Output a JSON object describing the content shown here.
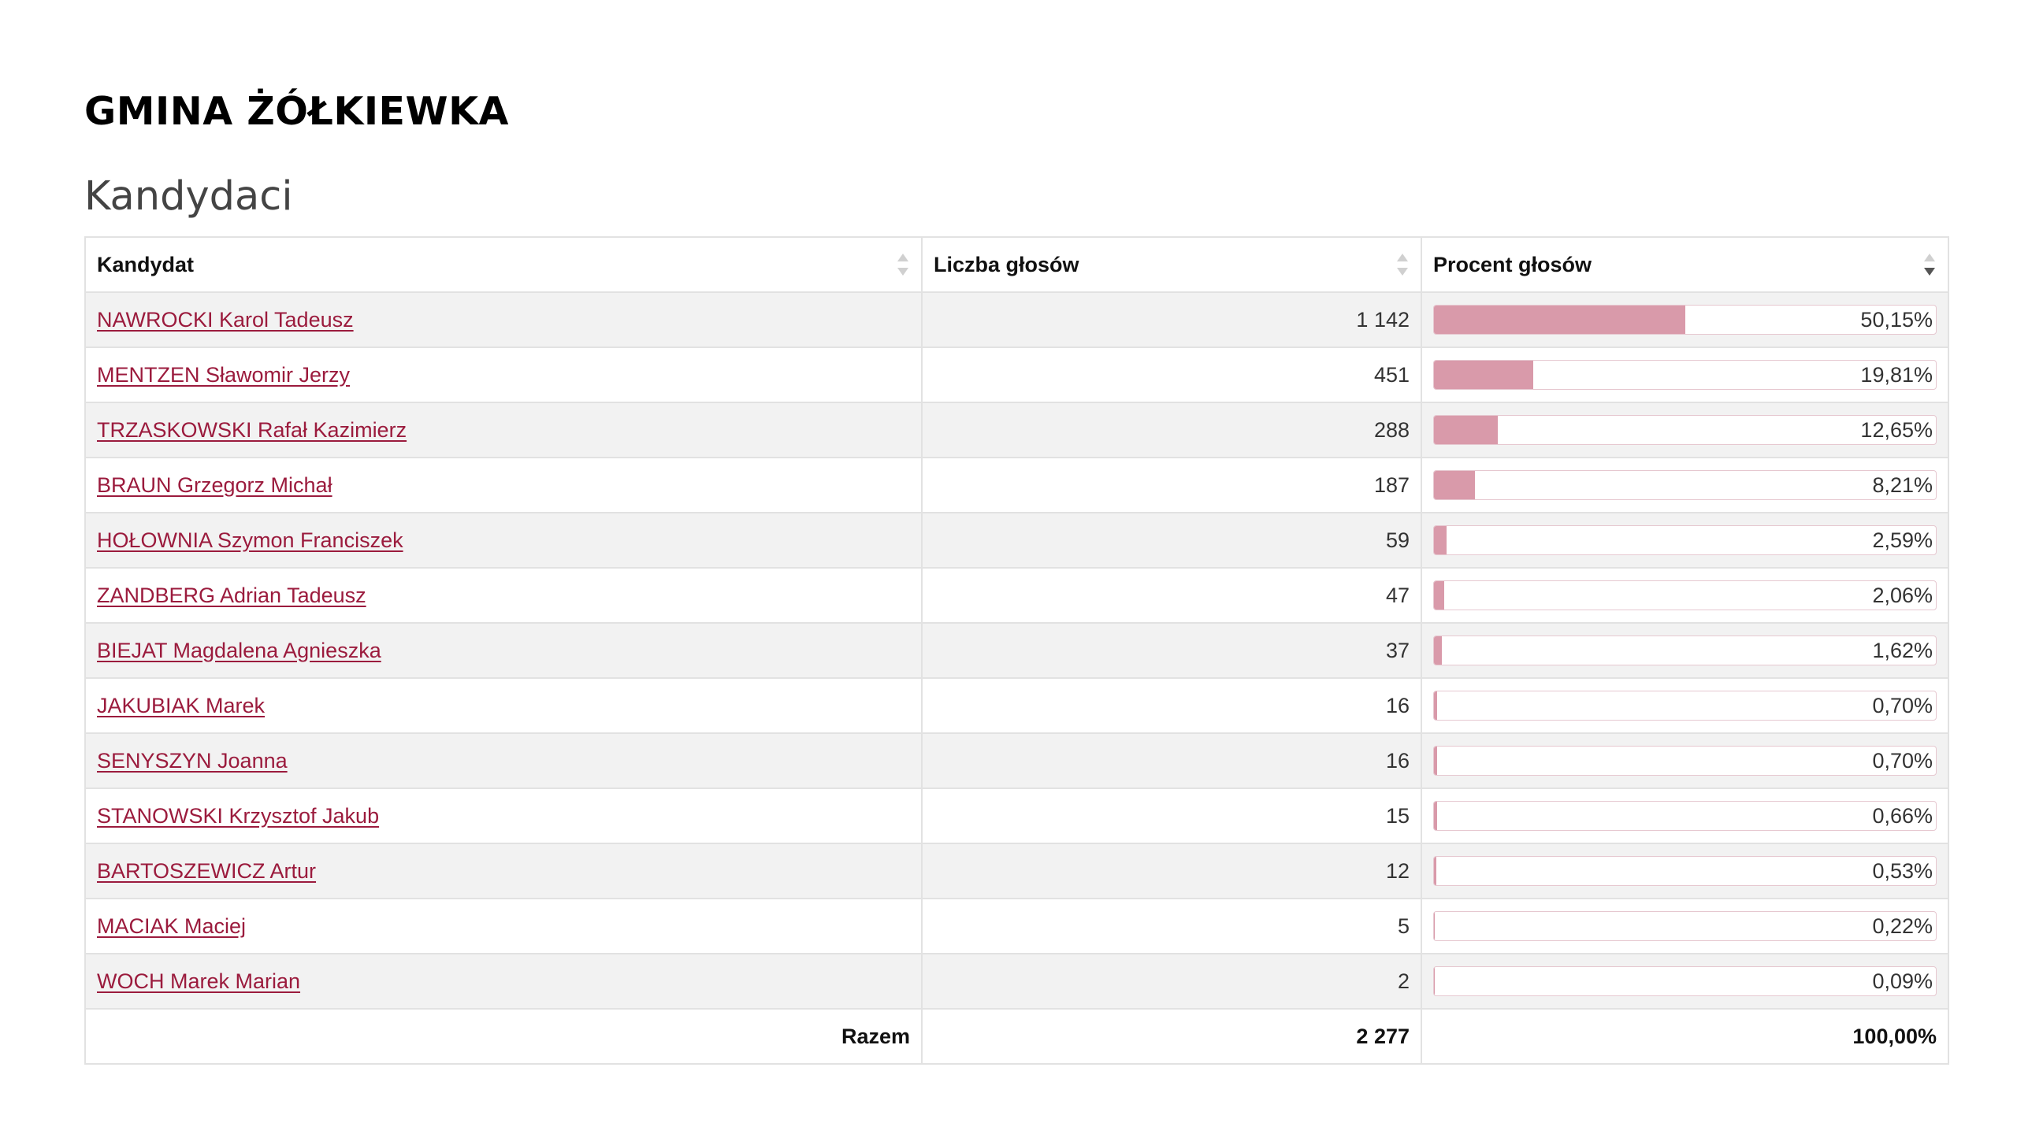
{
  "header": {
    "gmina_title": "GMINA ŻÓŁKIEWKA",
    "section_title": "Kandydaci"
  },
  "table": {
    "columns": [
      "Kandydat",
      "Liczba głosów",
      "Procent głosów"
    ],
    "rows": [
      {
        "name": "NAWROCKI Karol Tadeusz",
        "votes": "1 142",
        "percent": "50,15%",
        "percent_value": 50.15
      },
      {
        "name": "MENTZEN Sławomir Jerzy",
        "votes": "451",
        "percent": "19,81%",
        "percent_value": 19.81
      },
      {
        "name": "TRZASKOWSKI Rafał Kazimierz",
        "votes": "288",
        "percent": "12,65%",
        "percent_value": 12.65
      },
      {
        "name": "BRAUN Grzegorz Michał",
        "votes": "187",
        "percent": "8,21%",
        "percent_value": 8.21
      },
      {
        "name": "HOŁOWNIA Szymon Franciszek",
        "votes": "59",
        "percent": "2,59%",
        "percent_value": 2.59
      },
      {
        "name": "ZANDBERG Adrian Tadeusz",
        "votes": "47",
        "percent": "2,06%",
        "percent_value": 2.06
      },
      {
        "name": "BIEJAT Magdalena Agnieszka",
        "votes": "37",
        "percent": "1,62%",
        "percent_value": 1.62
      },
      {
        "name": "JAKUBIAK Marek",
        "votes": "16",
        "percent": "0,70%",
        "percent_value": 0.7
      },
      {
        "name": "SENYSZYN Joanna",
        "votes": "16",
        "percent": "0,70%",
        "percent_value": 0.7
      },
      {
        "name": "STANOWSKI Krzysztof Jakub",
        "votes": "15",
        "percent": "0,66%",
        "percent_value": 0.66
      },
      {
        "name": "BARTOSZEWICZ Artur",
        "votes": "12",
        "percent": "0,53%",
        "percent_value": 0.53
      },
      {
        "name": "MACIAK Maciej",
        "votes": "5",
        "percent": "0,22%",
        "percent_value": 0.22
      },
      {
        "name": "WOCH Marek Marian",
        "votes": "2",
        "percent": "0,09%",
        "percent_value": 0.09
      }
    ],
    "footer": {
      "label": "Razem",
      "votes": "2 277",
      "percent": "100,00%"
    },
    "sort": {
      "column": "Procent głosów",
      "direction": "descending"
    }
  },
  "colors": {
    "link": "#9b1b3d",
    "bar_fill": "#d99aaa",
    "bar_border": "#e6c8d0",
    "stripe": "#f2f2f2",
    "border": "#e2e2e2"
  },
  "icons": {
    "sort": "sort-arrows-icon",
    "sort_active": "sort-descending-icon"
  }
}
